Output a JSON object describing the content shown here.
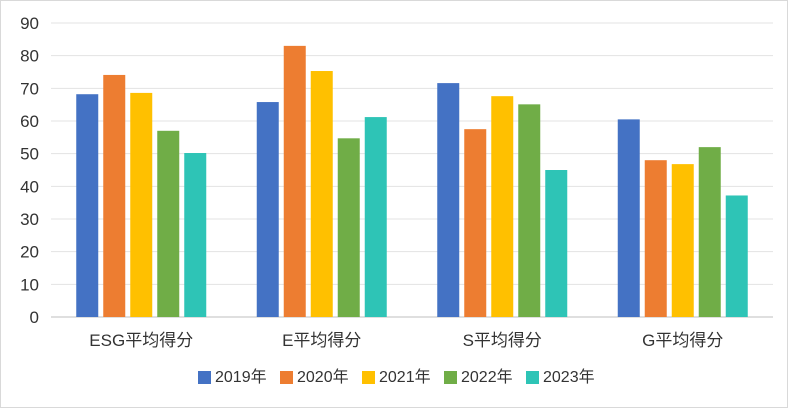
{
  "chart_data": {
    "type": "bar",
    "title": "",
    "xlabel": "",
    "ylabel": "",
    "ylim": [
      0,
      90
    ],
    "yticks": [
      0,
      10,
      20,
      30,
      40,
      50,
      60,
      70,
      80,
      90
    ],
    "grid": true,
    "legend_position": "bottom",
    "categories": [
      "ESG平均得分",
      "E平均得分",
      "S平均得分",
      "G平均得分"
    ],
    "series": [
      {
        "name": "2019年",
        "color": "#4472C4",
        "values": [
          68.2,
          65.8,
          71.6,
          60.5
        ]
      },
      {
        "name": "2020年",
        "color": "#ED7D31",
        "values": [
          74.1,
          83.0,
          57.5,
          48.0
        ]
      },
      {
        "name": "2021年",
        "color": "#FFC000",
        "values": [
          68.6,
          75.3,
          67.6,
          46.8
        ]
      },
      {
        "name": "2022年",
        "color": "#70AD47",
        "values": [
          57.0,
          54.7,
          65.1,
          52.0
        ]
      },
      {
        "name": "2023年",
        "color": "#2EC4B6",
        "values": [
          50.2,
          61.2,
          45.0,
          37.2
        ]
      }
    ]
  }
}
